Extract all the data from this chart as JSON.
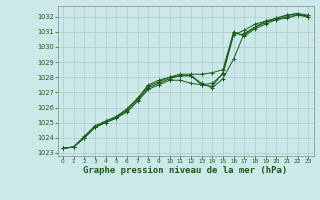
{
  "background_color": "#cce8e8",
  "grid_color": "#aacccc",
  "line_color": "#1a5c1a",
  "xlabel": "Graphe pression niveau de la mer (hPa)",
  "xlabel_fontsize": 6.5,
  "xlim": [
    -0.5,
    23.5
  ],
  "ylim": [
    1022.8,
    1032.7
  ],
  "yticks": [
    1023,
    1024,
    1025,
    1026,
    1027,
    1028,
    1029,
    1030,
    1031,
    1032
  ],
  "xticks": [
    0,
    1,
    2,
    3,
    4,
    5,
    6,
    7,
    8,
    9,
    10,
    11,
    12,
    13,
    14,
    15,
    16,
    17,
    18,
    19,
    20,
    21,
    22,
    23
  ],
  "series": [
    [
      1023.3,
      1023.4,
      1024.0,
      1024.7,
      1025.0,
      1025.3,
      1025.7,
      1026.4,
      1027.2,
      1027.5,
      1027.8,
      1027.8,
      1027.6,
      1027.5,
      1027.6,
      1028.2,
      1030.8,
      1031.1,
      1031.5,
      1031.7,
      1031.8,
      1032.0,
      1032.1,
      1032.0
    ],
    [
      1023.3,
      1023.4,
      1024.1,
      1024.8,
      1025.1,
      1025.4,
      1025.9,
      1026.6,
      1027.4,
      1027.7,
      1028.0,
      1028.1,
      1028.1,
      1027.5,
      1027.4,
      1028.3,
      1030.9,
      1030.8,
      1031.3,
      1031.6,
      1031.9,
      1032.1,
      1032.2,
      1032.1
    ],
    [
      1023.3,
      1023.4,
      1024.0,
      1024.7,
      1025.1,
      1025.4,
      1025.9,
      1026.6,
      1027.5,
      1027.8,
      1028.0,
      1028.2,
      1028.2,
      1028.2,
      1028.3,
      1028.5,
      1031.0,
      1030.7,
      1031.2,
      1031.5,
      1031.8,
      1031.9,
      1032.1,
      1032.0
    ],
    [
      1023.3,
      1023.4,
      1024.0,
      1024.7,
      1025.0,
      1025.3,
      1025.8,
      1026.5,
      1027.3,
      1027.6,
      1027.9,
      1028.1,
      1028.1,
      1027.6,
      1027.3,
      1027.9,
      1029.2,
      1030.9,
      1031.3,
      1031.7,
      1031.9,
      1032.1,
      1032.2,
      1032.0
    ]
  ]
}
